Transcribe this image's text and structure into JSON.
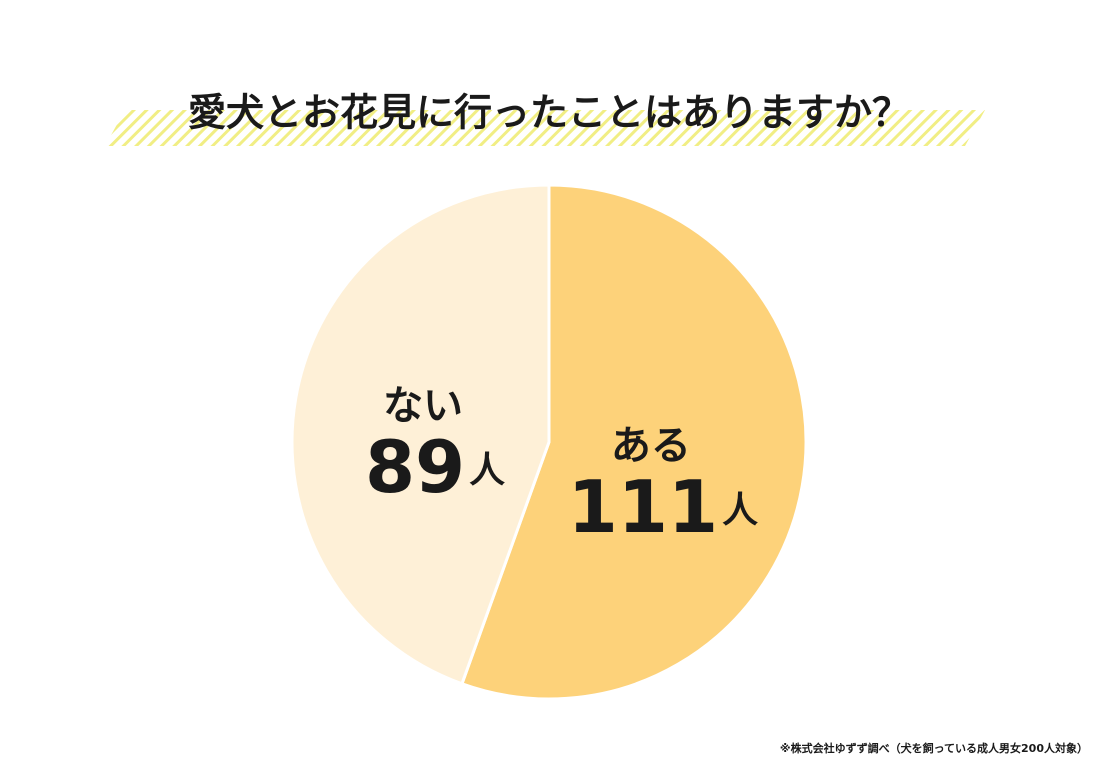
{
  "chart_data": {
    "type": "pie",
    "title": "愛犬とお花見に行ったことはありますか？",
    "categories": [
      "ある",
      "ない"
    ],
    "values": [
      111,
      89
    ],
    "value_labels": [
      "111人",
      "89人"
    ],
    "colors": [
      "#fdd27a",
      "#fef0d7"
    ],
    "note": "※株式会社ゆずず調べ（犬を飼っている成人男女200人対象）"
  }
}
